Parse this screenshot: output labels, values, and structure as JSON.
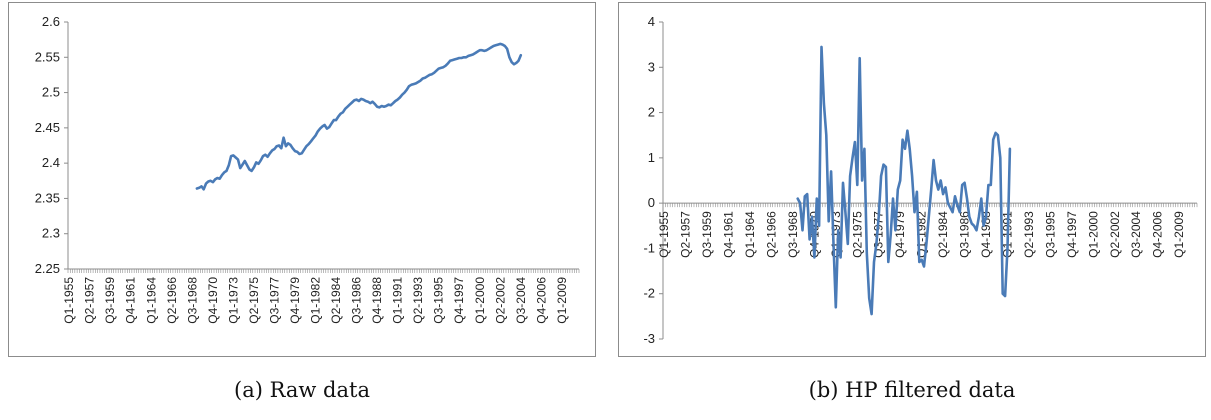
{
  "chart_data": [
    {
      "type": "line",
      "title": "",
      "xlabel": "",
      "ylabel": "",
      "ylim": [
        2.25,
        2.6
      ],
      "yticks": [
        "2.25",
        "2.3",
        "2.35",
        "2.4",
        "2.45",
        "2.5",
        "2.55",
        "2.6"
      ],
      "x_start": "Q1-1955",
      "x_end": "Q4-2010",
      "tick_labels": [
        "Q1-1955",
        "Q2-1957",
        "Q3-1959",
        "Q4-1961",
        "Q1-1964",
        "Q2-1966",
        "Q3-1968",
        "Q4-1970",
        "Q1-1973",
        "Q2-1975",
        "Q3-1977",
        "Q4-1979",
        "Q1-1982",
        "Q2-1984",
        "Q3-1986",
        "Q4-1988",
        "Q1-1991",
        "Q2-1993",
        "Q3-1995",
        "Q4-1997",
        "Q1-2000",
        "Q2-2002",
        "Q3-2004",
        "Q4-2006",
        "Q1-2009"
      ],
      "grid": false,
      "legend": "none",
      "color": "#4a7bb7",
      "series": [
        {
          "points": [
            [
              "Q1-1969",
              2.364
            ],
            [
              "Q2-1969",
              2.365
            ],
            [
              "Q3-1969",
              2.367
            ],
            [
              "Q4-1969",
              2.363
            ],
            [
              "Q1-1970",
              2.371
            ],
            [
              "Q2-1970",
              2.374
            ],
            [
              "Q3-1970",
              2.375
            ],
            [
              "Q4-1970",
              2.373
            ],
            [
              "Q1-1971",
              2.377
            ],
            [
              "Q2-1971",
              2.379
            ],
            [
              "Q3-1971",
              2.378
            ],
            [
              "Q4-1971",
              2.383
            ],
            [
              "Q1-1972",
              2.387
            ],
            [
              "Q2-1972",
              2.389
            ],
            [
              "Q3-1972",
              2.397
            ],
            [
              "Q4-1972",
              2.41
            ],
            [
              "Q1-1973",
              2.411
            ],
            [
              "Q2-1973",
              2.408
            ],
            [
              "Q3-1973",
              2.405
            ],
            [
              "Q4-1973",
              2.393
            ],
            [
              "Q1-1974",
              2.398
            ],
            [
              "Q2-1974",
              2.403
            ],
            [
              "Q3-1974",
              2.397
            ],
            [
              "Q4-1974",
              2.391
            ],
            [
              "Q1-1975",
              2.389
            ],
            [
              "Q2-1975",
              2.394
            ],
            [
              "Q3-1975",
              2.401
            ],
            [
              "Q4-1975",
              2.399
            ],
            [
              "Q1-1976",
              2.404
            ],
            [
              "Q2-1976",
              2.41
            ],
            [
              "Q3-1976",
              2.412
            ],
            [
              "Q4-1976",
              2.409
            ],
            [
              "Q1-1977",
              2.414
            ],
            [
              "Q2-1977",
              2.418
            ],
            [
              "Q3-1977",
              2.42
            ],
            [
              "Q4-1977",
              2.424
            ],
            [
              "Q1-1978",
              2.425
            ],
            [
              "Q2-1978",
              2.421
            ],
            [
              "Q3-1978",
              2.436
            ],
            [
              "Q4-1978",
              2.424
            ],
            [
              "Q1-1979",
              2.428
            ],
            [
              "Q2-1979",
              2.426
            ],
            [
              "Q3-1979",
              2.421
            ],
            [
              "Q4-1979",
              2.417
            ],
            [
              "Q1-1980",
              2.416
            ],
            [
              "Q2-1980",
              2.413
            ],
            [
              "Q3-1980",
              2.414
            ],
            [
              "Q4-1980",
              2.419
            ],
            [
              "Q1-1981",
              2.424
            ],
            [
              "Q2-1981",
              2.427
            ],
            [
              "Q3-1981",
              2.431
            ],
            [
              "Q4-1981",
              2.435
            ],
            [
              "Q1-1982",
              2.439
            ],
            [
              "Q2-1982",
              2.445
            ],
            [
              "Q3-1982",
              2.449
            ],
            [
              "Q4-1982",
              2.452
            ],
            [
              "Q1-1983",
              2.454
            ],
            [
              "Q2-1983",
              2.449
            ],
            [
              "Q3-1983",
              2.451
            ],
            [
              "Q4-1983",
              2.456
            ],
            [
              "Q1-1984",
              2.461
            ],
            [
              "Q2-1984",
              2.461
            ],
            [
              "Q3-1984",
              2.466
            ],
            [
              "Q4-1984",
              2.47
            ],
            [
              "Q1-1985",
              2.472
            ],
            [
              "Q2-1985",
              2.477
            ],
            [
              "Q3-1985",
              2.48
            ],
            [
              "Q4-1985",
              2.483
            ],
            [
              "Q1-1986",
              2.486
            ],
            [
              "Q2-1986",
              2.489
            ],
            [
              "Q3-1986",
              2.49
            ],
            [
              "Q4-1986",
              2.488
            ],
            [
              "Q1-1987",
              2.491
            ],
            [
              "Q2-1987",
              2.49
            ],
            [
              "Q3-1987",
              2.488
            ],
            [
              "Q4-1987",
              2.487
            ],
            [
              "Q1-1988",
              2.485
            ],
            [
              "Q2-1988",
              2.487
            ],
            [
              "Q3-1988",
              2.484
            ],
            [
              "Q4-1988",
              2.48
            ],
            [
              "Q1-1989",
              2.479
            ],
            [
              "Q2-1989",
              2.481
            ],
            [
              "Q3-1989",
              2.48
            ],
            [
              "Q4-1989",
              2.481
            ],
            [
              "Q1-1990",
              2.483
            ],
            [
              "Q2-1990",
              2.482
            ],
            [
              "Q3-1990",
              2.485
            ],
            [
              "Q4-1990",
              2.488
            ],
            [
              "Q1-1991",
              2.49
            ],
            [
              "Q2-1991",
              2.493
            ],
            [
              "Q3-1991",
              2.497
            ],
            [
              "Q4-1991",
              2.5
            ],
            [
              "Q1-1992",
              2.504
            ],
            [
              "Q2-1992",
              2.509
            ],
            [
              "Q3-1992",
              2.511
            ],
            [
              "Q4-1992",
              2.512
            ],
            [
              "Q1-1993",
              2.513
            ],
            [
              "Q2-1993",
              2.515
            ],
            [
              "Q3-1993",
              2.517
            ],
            [
              "Q4-1993",
              2.52
            ],
            [
              "Q1-1994",
              2.521
            ],
            [
              "Q2-1994",
              2.523
            ],
            [
              "Q3-1994",
              2.525
            ],
            [
              "Q4-1994",
              2.526
            ],
            [
              "Q1-1995",
              2.528
            ],
            [
              "Q2-1995",
              2.531
            ],
            [
              "Q3-1995",
              2.534
            ],
            [
              "Q4-1995",
              2.535
            ],
            [
              "Q1-1996",
              2.536
            ],
            [
              "Q2-1996",
              2.538
            ],
            [
              "Q3-1996",
              2.541
            ],
            [
              "Q4-1996",
              2.545
            ],
            [
              "Q1-1997",
              2.546
            ],
            [
              "Q2-1997",
              2.547
            ],
            [
              "Q3-1997",
              2.548
            ],
            [
              "Q4-1997",
              2.549
            ],
            [
              "Q1-1998",
              2.549
            ],
            [
              "Q2-1998",
              2.55
            ],
            [
              "Q3-1998",
              2.55
            ],
            [
              "Q4-1998",
              2.552
            ],
            [
              "Q1-1999",
              2.553
            ],
            [
              "Q2-1999",
              2.554
            ],
            [
              "Q3-1999",
              2.556
            ],
            [
              "Q4-1999",
              2.558
            ],
            [
              "Q1-2000",
              2.56
            ],
            [
              "Q2-2000",
              2.56
            ],
            [
              "Q3-2000",
              2.559
            ],
            [
              "Q4-2000",
              2.56
            ],
            [
              "Q1-2001",
              2.562
            ],
            [
              "Q2-2001",
              2.564
            ],
            [
              "Q3-2001",
              2.566
            ],
            [
              "Q4-2001",
              2.567
            ],
            [
              "Q1-2002",
              2.568
            ],
            [
              "Q2-2002",
              2.569
            ],
            [
              "Q3-2002",
              2.568
            ],
            [
              "Q4-2002",
              2.566
            ],
            [
              "Q1-2003",
              2.562
            ],
            [
              "Q2-2003",
              2.55
            ],
            [
              "Q3-2003",
              2.543
            ],
            [
              "Q4-2003",
              2.54
            ],
            [
              "Q1-2004",
              2.542
            ],
            [
              "Q2-2004",
              2.545
            ],
            [
              "Q3-2004",
              2.553
            ]
          ]
        }
      ],
      "caption": "(a) Raw data"
    },
    {
      "type": "line",
      "title": "",
      "xlabel": "",
      "ylabel": "",
      "ylim": [
        -3,
        4
      ],
      "yticks": [
        "-3",
        "-2",
        "-1",
        "0",
        "1",
        "2",
        "3",
        "4"
      ],
      "x_start": "Q1-1955",
      "x_end": "Q4-2010",
      "tick_labels": [
        "Q1-1955",
        "Q2-1957",
        "Q3-1959",
        "Q4-1961",
        "Q1-1964",
        "Q2-1966",
        "Q3-1968",
        "Q4-1970",
        "Q1-1973",
        "Q2-1975",
        "Q3-1977",
        "Q4-1979",
        "Q1-1982",
        "Q2-1984",
        "Q3-1986",
        "Q4-1988",
        "Q1-1991",
        "Q2-1993",
        "Q3-1995",
        "Q4-1997",
        "Q1-2000",
        "Q2-2002",
        "Q3-2004",
        "Q4-2006",
        "Q1-2009"
      ],
      "grid": false,
      "legend": "none",
      "color": "#4a7bb7",
      "series": [
        {
          "points": [
            [
              "Q1-1969",
              0.1
            ],
            [
              "Q2-1969",
              0.0
            ],
            [
              "Q3-1969",
              -0.6
            ],
            [
              "Q4-1969",
              0.15
            ],
            [
              "Q1-1970",
              0.2
            ],
            [
              "Q2-1970",
              -0.8
            ],
            [
              "Q3-1970",
              -0.3
            ],
            [
              "Q4-1970",
              -1.2
            ],
            [
              "Q1-1971",
              0.1
            ],
            [
              "Q2-1971",
              -0.5
            ],
            [
              "Q3-1971",
              3.45
            ],
            [
              "Q4-1971",
              2.2
            ],
            [
              "Q1-1972",
              1.5
            ],
            [
              "Q2-1972",
              -0.4
            ],
            [
              "Q3-1972",
              0.7
            ],
            [
              "Q4-1972",
              -0.9
            ],
            [
              "Q1-1973",
              -2.3
            ],
            [
              "Q2-1973",
              -0.6
            ],
            [
              "Q3-1973",
              -1.2
            ],
            [
              "Q4-1973",
              0.45
            ],
            [
              "Q1-1974",
              -0.2
            ],
            [
              "Q2-1974",
              -0.9
            ],
            [
              "Q3-1974",
              0.6
            ],
            [
              "Q4-1974",
              1.0
            ],
            [
              "Q1-1975",
              1.35
            ],
            [
              "Q2-1975",
              0.4
            ],
            [
              "Q3-1975",
              3.2
            ],
            [
              "Q4-1975",
              0.5
            ],
            [
              "Q1-1976",
              1.2
            ],
            [
              "Q2-1976",
              -1.1
            ],
            [
              "Q3-1976",
              -2.1
            ],
            [
              "Q4-1976",
              -2.45
            ],
            [
              "Q1-1977",
              -1.3
            ],
            [
              "Q2-1977",
              -0.9
            ],
            [
              "Q3-1977",
              -0.3
            ],
            [
              "Q4-1977",
              0.6
            ],
            [
              "Q1-1978",
              0.85
            ],
            [
              "Q2-1978",
              0.8
            ],
            [
              "Q3-1978",
              -1.3
            ],
            [
              "Q4-1978",
              -0.7
            ],
            [
              "Q1-1979",
              0.1
            ],
            [
              "Q2-1979",
              -0.6
            ],
            [
              "Q3-1979",
              0.3
            ],
            [
              "Q4-1979",
              0.5
            ],
            [
              "Q1-1980",
              1.4
            ],
            [
              "Q2-1980",
              1.2
            ],
            [
              "Q3-1980",
              1.6
            ],
            [
              "Q4-1980",
              1.2
            ],
            [
              "Q1-1981",
              0.6
            ],
            [
              "Q2-1981",
              -0.2
            ],
            [
              "Q3-1981",
              0.25
            ],
            [
              "Q4-1981",
              -1.3
            ],
            [
              "Q1-1982",
              -1.25
            ],
            [
              "Q2-1982",
              -1.4
            ],
            [
              "Q3-1982",
              -0.9
            ],
            [
              "Q4-1982",
              -0.3
            ],
            [
              "Q1-1983",
              0.3
            ],
            [
              "Q2-1983",
              0.95
            ],
            [
              "Q3-1983",
              0.5
            ],
            [
              "Q4-1983",
              0.3
            ],
            [
              "Q1-1984",
              0.5
            ],
            [
              "Q2-1984",
              0.2
            ],
            [
              "Q3-1984",
              0.35
            ],
            [
              "Q4-1984",
              0.0
            ],
            [
              "Q1-1985",
              -0.1
            ],
            [
              "Q2-1985",
              -0.2
            ],
            [
              "Q3-1985",
              0.15
            ],
            [
              "Q4-1985",
              -0.05
            ],
            [
              "Q1-1986",
              -0.2
            ],
            [
              "Q2-1986",
              0.4
            ],
            [
              "Q3-1986",
              0.45
            ],
            [
              "Q4-1986",
              0.1
            ],
            [
              "Q1-1987",
              -0.3
            ],
            [
              "Q2-1987",
              -0.45
            ],
            [
              "Q3-1987",
              -0.5
            ],
            [
              "Q4-1987",
              -0.6
            ],
            [
              "Q1-1988",
              -0.3
            ],
            [
              "Q2-1988",
              0.1
            ],
            [
              "Q3-1988",
              -0.5
            ],
            [
              "Q4-1988",
              -0.3
            ],
            [
              "Q1-1989",
              0.4
            ],
            [
              "Q2-1989",
              0.4
            ],
            [
              "Q3-1989",
              1.4
            ],
            [
              "Q4-1989",
              1.55
            ],
            [
              "Q1-1990",
              1.5
            ],
            [
              "Q2-1990",
              1.0
            ],
            [
              "Q3-1990",
              -2.0
            ],
            [
              "Q4-1990",
              -2.05
            ],
            [
              "Q1-1991",
              -1.0
            ],
            [
              "Q2-1991",
              1.2
            ]
          ]
        }
      ],
      "caption": "(b) HP filtered data"
    }
  ]
}
